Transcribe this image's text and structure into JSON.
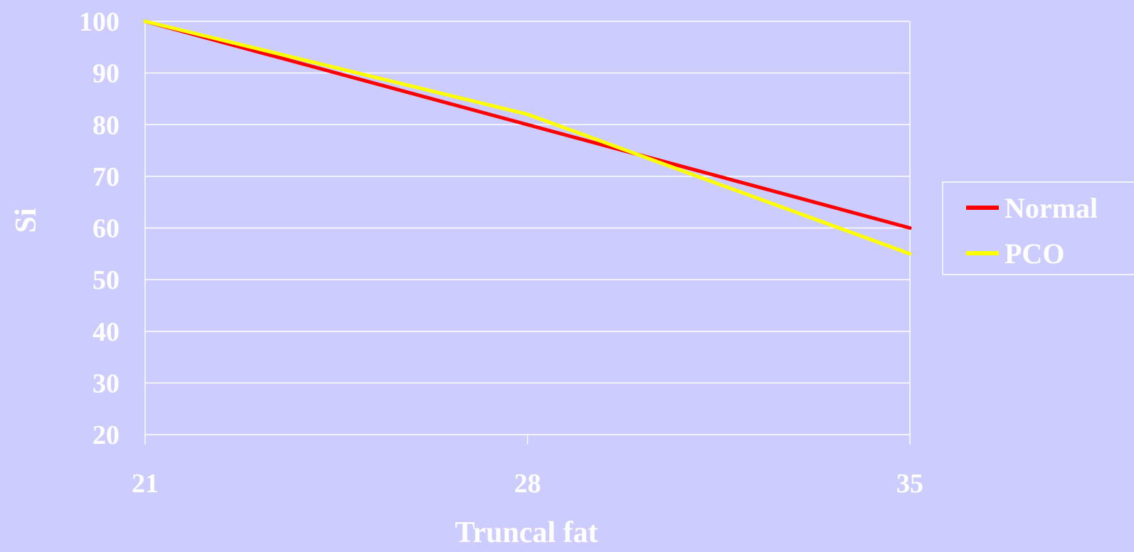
{
  "chart_data": {
    "type": "line",
    "xlabel": "Truncal fat",
    "ylabel": "Si",
    "categories": [
      "21",
      "28",
      "35"
    ],
    "x": [
      21,
      28,
      35
    ],
    "ylim": [
      20,
      100
    ],
    "yticks": [
      20,
      30,
      40,
      50,
      60,
      70,
      80,
      90,
      100
    ],
    "grid": true,
    "legend_position": "right",
    "series": [
      {
        "name": "Normal",
        "color": "#ff0000",
        "values": [
          100,
          80,
          60
        ]
      },
      {
        "name": "PCO",
        "color": "#ffff00",
        "values": [
          100,
          82,
          55
        ]
      }
    ]
  },
  "colors": {
    "background": "#ccccff",
    "grid": "#ffffff",
    "text": "#ffffff"
  }
}
